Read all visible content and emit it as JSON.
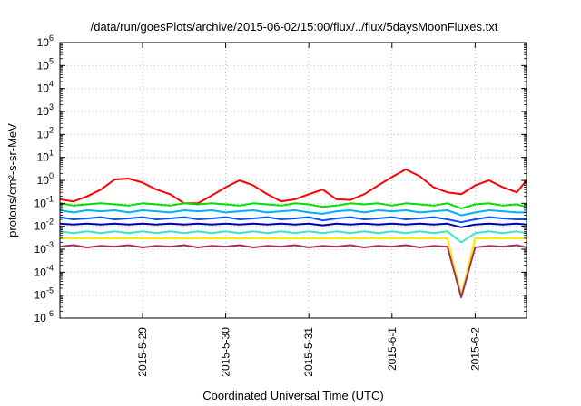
{
  "chart_data": {
    "type": "line",
    "title": "/data/run/goesPlots/archive/2015-06-02/15:00/flux/../flux/5daysMoonFluxes.txt",
    "xlabel": "Coordinated Universal Time (UTC)",
    "ylabel": "protons/cm²-s-sr-MeV",
    "y_scale": "log",
    "ylim": [
      "1e-6",
      "1e6"
    ],
    "xlim": [
      "2015-05-28 00:10",
      "2015-06-02 14:50"
    ],
    "grid": true,
    "legend": "none",
    "x_ticks": [
      {
        "value": "2015-05-29 00:00",
        "label": "2015-5-29"
      },
      {
        "value": "2015-05-30 00:00",
        "label": "2015-5-30"
      },
      {
        "value": "2015-05-31 00:00",
        "label": "2015-5-31"
      },
      {
        "value": "2015-06-01 00:00",
        "label": "2015-6-1"
      },
      {
        "value": "2015-06-02 00:00",
        "label": "2015-6-2"
      }
    ],
    "y_ticks": [
      {
        "base": "10",
        "exp": "-6"
      },
      {
        "base": "10",
        "exp": "-5"
      },
      {
        "base": "10",
        "exp": "-4"
      },
      {
        "base": "10",
        "exp": "-3"
      },
      {
        "base": "10",
        "exp": "-2"
      },
      {
        "base": "10",
        "exp": "-1"
      },
      {
        "base": "10",
        "exp": "0"
      },
      {
        "base": "10",
        "exp": "1"
      },
      {
        "base": "10",
        "exp": "2"
      },
      {
        "base": "10",
        "exp": "3"
      },
      {
        "base": "10",
        "exp": "4"
      },
      {
        "base": "10",
        "exp": "5"
      },
      {
        "base": "10",
        "exp": "6"
      }
    ],
    "x": [
      "2015-05-28 00:10",
      "2015-05-28 04:00",
      "2015-05-28 08:00",
      "2015-05-28 12:00",
      "2015-05-28 16:00",
      "2015-05-28 20:00",
      "2015-05-29 00:00",
      "2015-05-29 04:00",
      "2015-05-29 08:00",
      "2015-05-29 12:00",
      "2015-05-29 16:00",
      "2015-05-29 20:00",
      "2015-05-30 00:00",
      "2015-05-30 04:00",
      "2015-05-30 08:00",
      "2015-05-30 12:00",
      "2015-05-30 16:00",
      "2015-05-30 20:00",
      "2015-05-31 00:00",
      "2015-05-31 04:00",
      "2015-05-31 08:00",
      "2015-05-31 12:00",
      "2015-05-31 16:00",
      "2015-05-31 20:00",
      "2015-06-01 00:00",
      "2015-06-01 04:00",
      "2015-06-01 08:00",
      "2015-06-01 12:00",
      "2015-06-01 16:00",
      "2015-06-01 20:00",
      "2015-06-02 00:00",
      "2015-06-02 04:00",
      "2015-06-02 08:00",
      "2015-06-02 12:00",
      "2015-06-02 14:50"
    ],
    "series": [
      {
        "color": "#ff0000",
        "values": [
          0.15,
          0.12,
          0.2,
          0.4,
          1.1,
          1.2,
          0.8,
          0.4,
          0.25,
          0.1,
          0.1,
          0.22,
          0.5,
          1.0,
          0.6,
          0.25,
          0.12,
          0.15,
          0.25,
          0.4,
          0.15,
          0.14,
          0.25,
          0.6,
          1.4,
          3.0,
          1.5,
          0.5,
          0.3,
          0.25,
          0.6,
          1.0,
          0.5,
          0.3,
          1.0
        ]
      },
      {
        "color": "#00e000",
        "values": [
          0.1,
          0.08,
          0.09,
          0.1,
          0.09,
          0.08,
          0.1,
          0.09,
          0.08,
          0.1,
          0.09,
          0.1,
          0.09,
          0.08,
          0.1,
          0.09,
          0.08,
          0.1,
          0.09,
          0.07,
          0.08,
          0.1,
          0.09,
          0.1,
          0.08,
          0.1,
          0.09,
          0.08,
          0.1,
          0.06,
          0.09,
          0.1,
          0.08,
          0.09,
          0.07
        ]
      },
      {
        "color": "#00b0ff",
        "values": [
          0.05,
          0.04,
          0.05,
          0.045,
          0.05,
          0.04,
          0.05,
          0.045,
          0.04,
          0.05,
          0.045,
          0.05,
          0.04,
          0.045,
          0.05,
          0.04,
          0.045,
          0.05,
          0.04,
          0.035,
          0.045,
          0.05,
          0.04,
          0.05,
          0.045,
          0.05,
          0.04,
          0.045,
          0.05,
          0.03,
          0.04,
          0.05,
          0.045,
          0.04,
          0.04
        ]
      },
      {
        "color": "#0055ff",
        "values": [
          0.025,
          0.02,
          0.022,
          0.025,
          0.02,
          0.022,
          0.025,
          0.02,
          0.022,
          0.025,
          0.02,
          0.022,
          0.025,
          0.02,
          0.022,
          0.025,
          0.02,
          0.022,
          0.025,
          0.018,
          0.022,
          0.025,
          0.02,
          0.022,
          0.025,
          0.02,
          0.022,
          0.025,
          0.02,
          0.015,
          0.02,
          0.025,
          0.022,
          0.02,
          0.02
        ]
      },
      {
        "color": "#0000aa",
        "values": [
          0.013,
          0.012,
          0.013,
          0.012,
          0.013,
          0.012,
          0.013,
          0.012,
          0.013,
          0.012,
          0.013,
          0.012,
          0.013,
          0.012,
          0.013,
          0.012,
          0.013,
          0.012,
          0.013,
          0.011,
          0.013,
          0.012,
          0.013,
          0.012,
          0.013,
          0.012,
          0.013,
          0.012,
          0.013,
          0.009,
          0.012,
          0.013,
          0.012,
          0.013,
          0.012
        ]
      },
      {
        "color": "#40e0d0",
        "values": [
          0.006,
          0.005,
          0.006,
          0.005,
          0.006,
          0.005,
          0.006,
          0.005,
          0.006,
          0.005,
          0.006,
          0.005,
          0.006,
          0.005,
          0.006,
          0.005,
          0.006,
          0.005,
          0.006,
          0.005,
          0.006,
          0.005,
          0.006,
          0.005,
          0.006,
          0.005,
          0.006,
          0.005,
          0.006,
          0.002,
          0.005,
          0.006,
          0.005,
          0.006,
          0.005
        ]
      },
      {
        "color": "#ffe800",
        "values": [
          0.003,
          0.003,
          0.003,
          0.003,
          0.003,
          0.003,
          0.003,
          0.003,
          0.003,
          0.003,
          0.003,
          0.003,
          0.003,
          0.003,
          0.003,
          0.003,
          0.003,
          0.003,
          0.003,
          0.003,
          0.003,
          0.003,
          0.003,
          0.003,
          0.003,
          0.003,
          0.003,
          0.003,
          0.003,
          1e-05,
          0.003,
          0.003,
          0.003,
          0.003,
          0.003
        ]
      },
      {
        "color": "#993366",
        "values": [
          0.0013,
          0.0015,
          0.0012,
          0.0014,
          0.0013,
          0.0015,
          0.0012,
          0.0014,
          0.0013,
          0.0015,
          0.0012,
          0.0014,
          0.0013,
          0.0015,
          0.0012,
          0.0014,
          0.0013,
          0.0015,
          0.0012,
          0.0014,
          0.0013,
          0.0015,
          0.0012,
          0.0014,
          0.0013,
          0.0015,
          0.0012,
          0.0014,
          0.0013,
          8e-06,
          0.0012,
          0.0014,
          0.0013,
          0.0015,
          0.0012
        ]
      }
    ]
  }
}
